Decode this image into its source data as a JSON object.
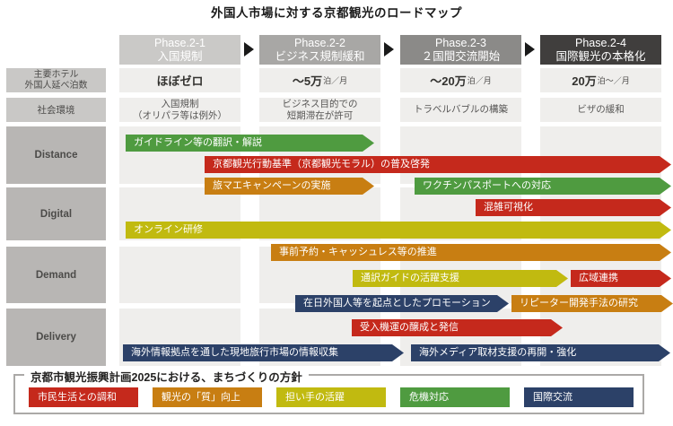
{
  "title": "外国人市場に対する京都観光のロードマップ",
  "phases": [
    {
      "name": "Phase.2-1",
      "subtitle": "入国規制",
      "bg": "#cac9c7"
    },
    {
      "name": "Phase.2-2",
      "subtitle": "ビジネス規制緩和",
      "bg": "#a8a7a5"
    },
    {
      "name": "Phase.2-3",
      "subtitle": "２国間交流開始",
      "bg": "#8b8a88"
    },
    {
      "name": "Phase.2-4",
      "subtitle": "国際観光の本格化",
      "bg": "#403e3d"
    }
  ],
  "left_labels": {
    "hotel_line1": "主要ホテル",
    "hotel_line2": "外国人延べ泊数",
    "environment": "社会環境",
    "d_rows": [
      "Distance",
      "Digital",
      "Demand",
      "Delivery"
    ]
  },
  "hotel_values": [
    {
      "big": "ほぼゼロ",
      "small": ""
    },
    {
      "big": "〜5万",
      "small": "泊／月"
    },
    {
      "big": "〜20万",
      "small": "泊／月"
    },
    {
      "big": "20万",
      "small": "泊〜／月"
    }
  ],
  "environment_values": [
    {
      "line1": "入国規制",
      "line2": "（オリパラ等は例外）"
    },
    {
      "line1": "ビジネス目的での",
      "line2": "短期滞在が許可"
    },
    {
      "line1": "トラベルバブルの構築",
      "line2": ""
    },
    {
      "line1": "ビザの緩和",
      "line2": ""
    }
  ],
  "bars": [
    {
      "text": "ガイドライン等の翻訳・解説",
      "color": "#4f9b40"
    },
    {
      "text": "京都観光行動基準（京都観光モラル）の普及啓発",
      "color": "#c5291c"
    },
    {
      "text": "旅マエキャンペーンの実施",
      "color": "#c87e12"
    },
    {
      "text": "ワクチンパスポートへの対応",
      "color": "#4f9b40"
    },
    {
      "text": "混雑可視化",
      "color": "#c5291c"
    },
    {
      "text": "オンライン研修",
      "color": "#c1ba10"
    },
    {
      "text": "事前予約・キャッシュレス等の推進",
      "color": "#c87e12"
    },
    {
      "text": "通訳ガイドの活躍支援",
      "color": "#c1ba10"
    },
    {
      "text": "広域連携",
      "color": "#c5291c"
    },
    {
      "text": "在日外国人等を起点としたプロモーション",
      "color": "#2c4168"
    },
    {
      "text": "リピーター開発手法の研究",
      "color": "#c87e12"
    },
    {
      "text": "受入機運の醸成と発信",
      "color": "#c5291c"
    },
    {
      "text": "海外情報拠点を通した現地旅行市場の情報収集",
      "color": "#2c4168"
    },
    {
      "text": "海外メディア取材支援の再開・強化",
      "color": "#2c4168"
    }
  ],
  "legend": {
    "title": "京都市観光振興計画2025における、まちづくりの方針",
    "items": [
      {
        "label": "市民生活との調和",
        "color": "#c5291c"
      },
      {
        "label": "観光の「質」向上",
        "color": "#c87e12"
      },
      {
        "label": "担い手の活躍",
        "color": "#c1ba10"
      },
      {
        "label": "危機対応",
        "color": "#4f9b40"
      },
      {
        "label": "国際交流",
        "color": "#2c4168"
      }
    ]
  },
  "palette": {
    "red": "#c5291c",
    "green": "#4f9b40",
    "orange": "#c87e12",
    "yellow": "#c1ba10",
    "navy": "#2c4168",
    "grid_cell": "#efeeec",
    "label_light": "#c9c8c6",
    "label_dark": "#b8b6b4"
  }
}
